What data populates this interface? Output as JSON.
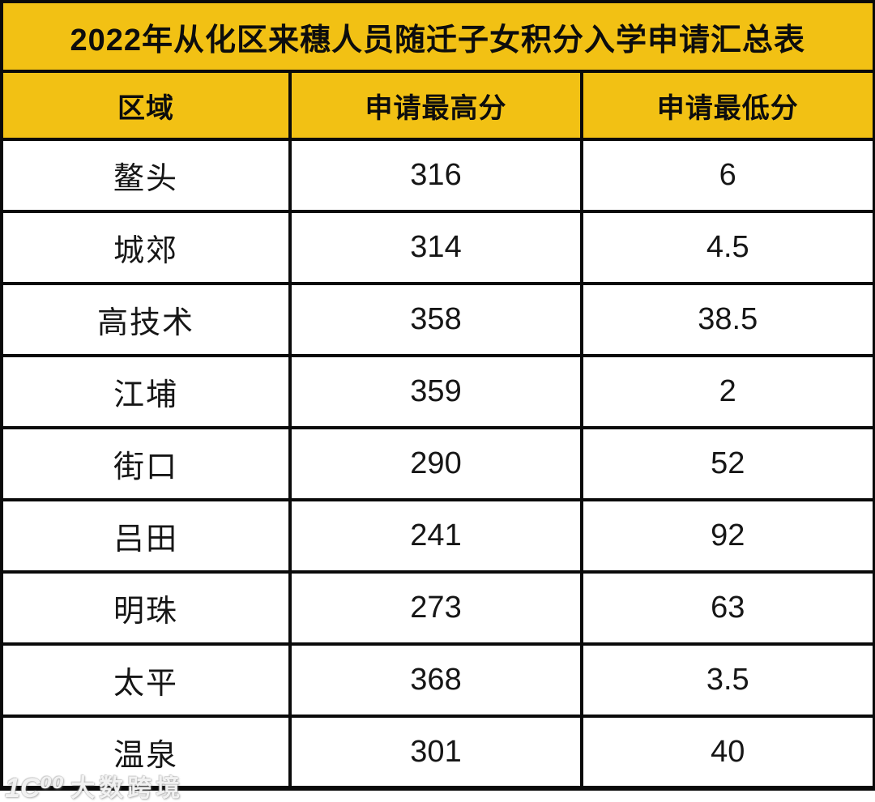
{
  "title": "2022年从化区来穗人员随迁子女积分入学申请汇总表",
  "colors": {
    "header_bg": "#F2C114",
    "border": "#0A0A0A",
    "row_bg": "#FFFFFF",
    "text": "#161616"
  },
  "watermark": {
    "logo": "1C⁰⁰",
    "text": "大数跨境"
  },
  "chart_data": {
    "type": "table",
    "title": "2022年从化区来穗人员随迁子女积分入学申请汇总表",
    "columns": [
      "区域",
      "申请最高分",
      "申请最低分"
    ],
    "column_keys": [
      "region",
      "max-score",
      "min-score"
    ],
    "rows": [
      [
        "鳌头",
        316,
        6
      ],
      [
        "城郊",
        314,
        4.5
      ],
      [
        "高技术",
        358,
        38.5
      ],
      [
        "江埔",
        359,
        2
      ],
      [
        "街口",
        290,
        52
      ],
      [
        "吕田",
        241,
        92
      ],
      [
        "明珠",
        273,
        63
      ],
      [
        "太平",
        368,
        3.5
      ],
      [
        "温泉",
        301,
        40
      ]
    ],
    "layout": {
      "header_fill": "#F2C114",
      "grid": true,
      "grid_color": "#0A0A0A"
    }
  }
}
